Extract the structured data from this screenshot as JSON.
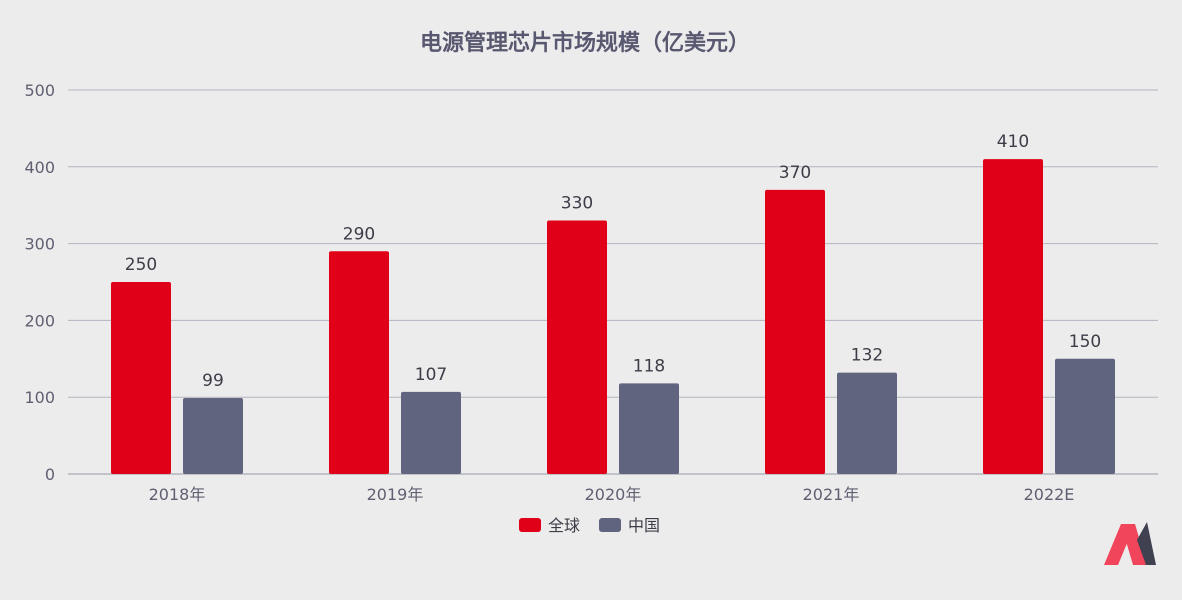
{
  "chart_data": {
    "type": "bar",
    "title": "电源管理芯片市场规模（亿美元）",
    "categories": [
      "2018年",
      "2019年",
      "2020年",
      "2021年",
      "2022E"
    ],
    "series": [
      {
        "name": "全球",
        "color": "#e00017",
        "values": [
          250,
          290,
          330,
          370,
          410
        ]
      },
      {
        "name": "中国",
        "color": "#60647e",
        "values": [
          99,
          107,
          118,
          132,
          150
        ]
      }
    ],
    "ylim": [
      0,
      500
    ],
    "yticks": [
      0,
      100,
      200,
      300,
      400,
      500
    ],
    "grid": true,
    "legend": "bottom-center",
    "data_labels": true
  },
  "logo": {
    "name": "m-logo",
    "colors": [
      "#f0455a",
      "#3f4050"
    ]
  }
}
